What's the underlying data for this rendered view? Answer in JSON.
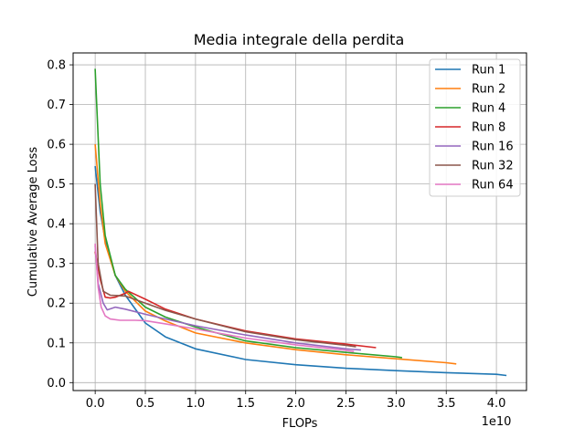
{
  "chart_data": {
    "type": "line",
    "title": "Media integrale della perdita",
    "xlabel": "FLOPs",
    "ylabel": "Cumulative Average Loss",
    "x_scale_label": "1e10",
    "xlim": [
      -0.22,
      4.3
    ],
    "ylim": [
      -0.02,
      0.83
    ],
    "x_ticks": [
      0.0,
      0.5,
      1.0,
      1.5,
      2.0,
      2.5,
      3.0,
      3.5,
      4.0
    ],
    "x_tick_labels": [
      "0.0",
      "0.5",
      "1.0",
      "1.5",
      "2.0",
      "2.5",
      "3.0",
      "3.5",
      "4.0"
    ],
    "y_ticks": [
      0.0,
      0.1,
      0.2,
      0.3,
      0.4,
      0.5,
      0.6,
      0.7,
      0.8
    ],
    "y_tick_labels": [
      "0.0",
      "0.1",
      "0.2",
      "0.3",
      "0.4",
      "0.5",
      "0.6",
      "0.7",
      "0.8"
    ],
    "grid": true,
    "legend_position": "top-right",
    "series": [
      {
        "name": "Run 1",
        "color": "#1f77b4",
        "x": [
          0.0,
          0.05,
          0.1,
          0.2,
          0.3,
          0.5,
          0.7,
          1.0,
          1.5,
          2.0,
          2.5,
          3.0,
          3.5,
          4.0,
          4.1
        ],
        "y": [
          0.545,
          0.43,
          0.36,
          0.27,
          0.22,
          0.15,
          0.115,
          0.085,
          0.058,
          0.045,
          0.036,
          0.03,
          0.025,
          0.021,
          0.018
        ]
      },
      {
        "name": "Run 2",
        "color": "#ff7f0e",
        "x": [
          0.0,
          0.05,
          0.1,
          0.2,
          0.3,
          0.5,
          0.7,
          1.0,
          1.5,
          2.0,
          2.5,
          3.0,
          3.5,
          3.6
        ],
        "y": [
          0.6,
          0.45,
          0.35,
          0.27,
          0.23,
          0.18,
          0.155,
          0.125,
          0.1,
          0.083,
          0.07,
          0.06,
          0.05,
          0.047
        ]
      },
      {
        "name": "Run 4",
        "color": "#2ca02c",
        "x": [
          0.0,
          0.05,
          0.1,
          0.2,
          0.3,
          0.5,
          0.7,
          1.0,
          1.5,
          2.0,
          2.5,
          3.0,
          3.06
        ],
        "y": [
          0.79,
          0.5,
          0.37,
          0.27,
          0.235,
          0.19,
          0.165,
          0.14,
          0.105,
          0.088,
          0.076,
          0.065,
          0.063
        ]
      },
      {
        "name": "Run 8",
        "color": "#d62728",
        "x": [
          0.0,
          0.05,
          0.1,
          0.15,
          0.2,
          0.3,
          0.33,
          0.5,
          0.7,
          1.0,
          1.5,
          2.0,
          2.5,
          2.8
        ],
        "y": [
          0.33,
          0.26,
          0.215,
          0.213,
          0.215,
          0.225,
          0.23,
          0.21,
          0.185,
          0.16,
          0.13,
          0.11,
          0.097,
          0.088
        ]
      },
      {
        "name": "Run 16",
        "color": "#9467bd",
        "x": [
          0.0,
          0.03,
          0.08,
          0.12,
          0.2,
          0.3,
          0.5,
          0.7,
          1.0,
          1.5,
          2.0,
          2.5,
          2.65
        ],
        "y": [
          0.345,
          0.25,
          0.2,
          0.183,
          0.19,
          0.185,
          0.172,
          0.16,
          0.143,
          0.12,
          0.1,
          0.085,
          0.082
        ]
      },
      {
        "name": "Run 32",
        "color": "#8c564b",
        "x": [
          0.0,
          0.03,
          0.08,
          0.15,
          0.3,
          0.5,
          0.7,
          1.0,
          1.5,
          2.0,
          2.5,
          2.6
        ],
        "y": [
          0.5,
          0.3,
          0.23,
          0.22,
          0.218,
          0.2,
          0.182,
          0.16,
          0.128,
          0.108,
          0.094,
          0.09
        ]
      },
      {
        "name": "Run 64",
        "color": "#e377c2",
        "x": [
          0.0,
          0.03,
          0.06,
          0.1,
          0.15,
          0.25,
          0.4,
          0.5,
          0.7,
          1.0,
          1.5,
          2.0,
          2.5,
          2.58
        ],
        "y": [
          0.35,
          0.24,
          0.19,
          0.168,
          0.16,
          0.157,
          0.157,
          0.156,
          0.148,
          0.135,
          0.112,
          0.095,
          0.081,
          0.078
        ]
      }
    ]
  }
}
